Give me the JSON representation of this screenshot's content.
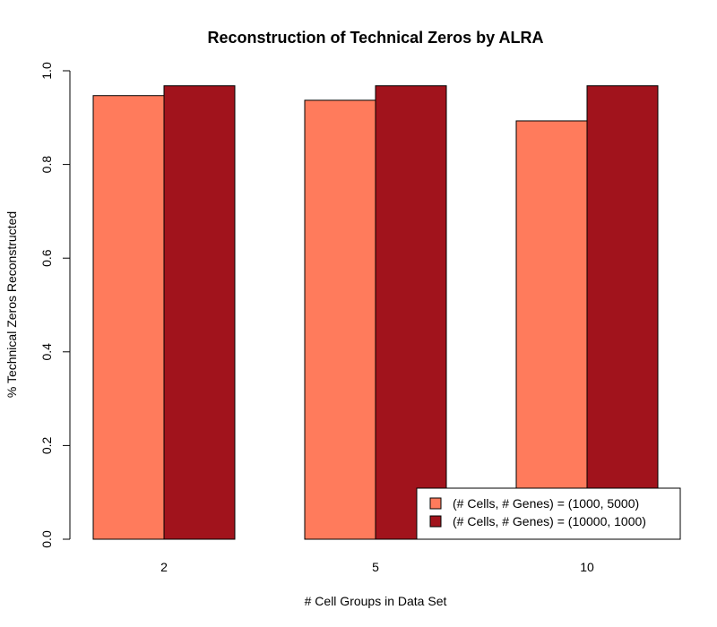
{
  "chart_data": {
    "type": "bar",
    "title": "Reconstruction of Technical Zeros by ALRA",
    "xlabel": "# Cell Groups in Data Set",
    "ylabel": "% Technical Zeros Reconstructed",
    "categories": [
      "2",
      "5",
      "10"
    ],
    "series": [
      {
        "name": "(# Cells, # Genes) = (1000, 5000)",
        "color": "#ff7b5c",
        "values": [
          0.947,
          0.937,
          0.893
        ]
      },
      {
        "name": "(# Cells, # Genes) = (10000, 1000)",
        "color": "#a1131c",
        "values": [
          0.968,
          0.968,
          0.968
        ]
      }
    ],
    "ylim": [
      0,
      1
    ],
    "yticks": [
      "0.0",
      "0.2",
      "0.4",
      "0.6",
      "0.8",
      "1.0"
    ],
    "grid": false,
    "legend_position": "bottom-right"
  }
}
